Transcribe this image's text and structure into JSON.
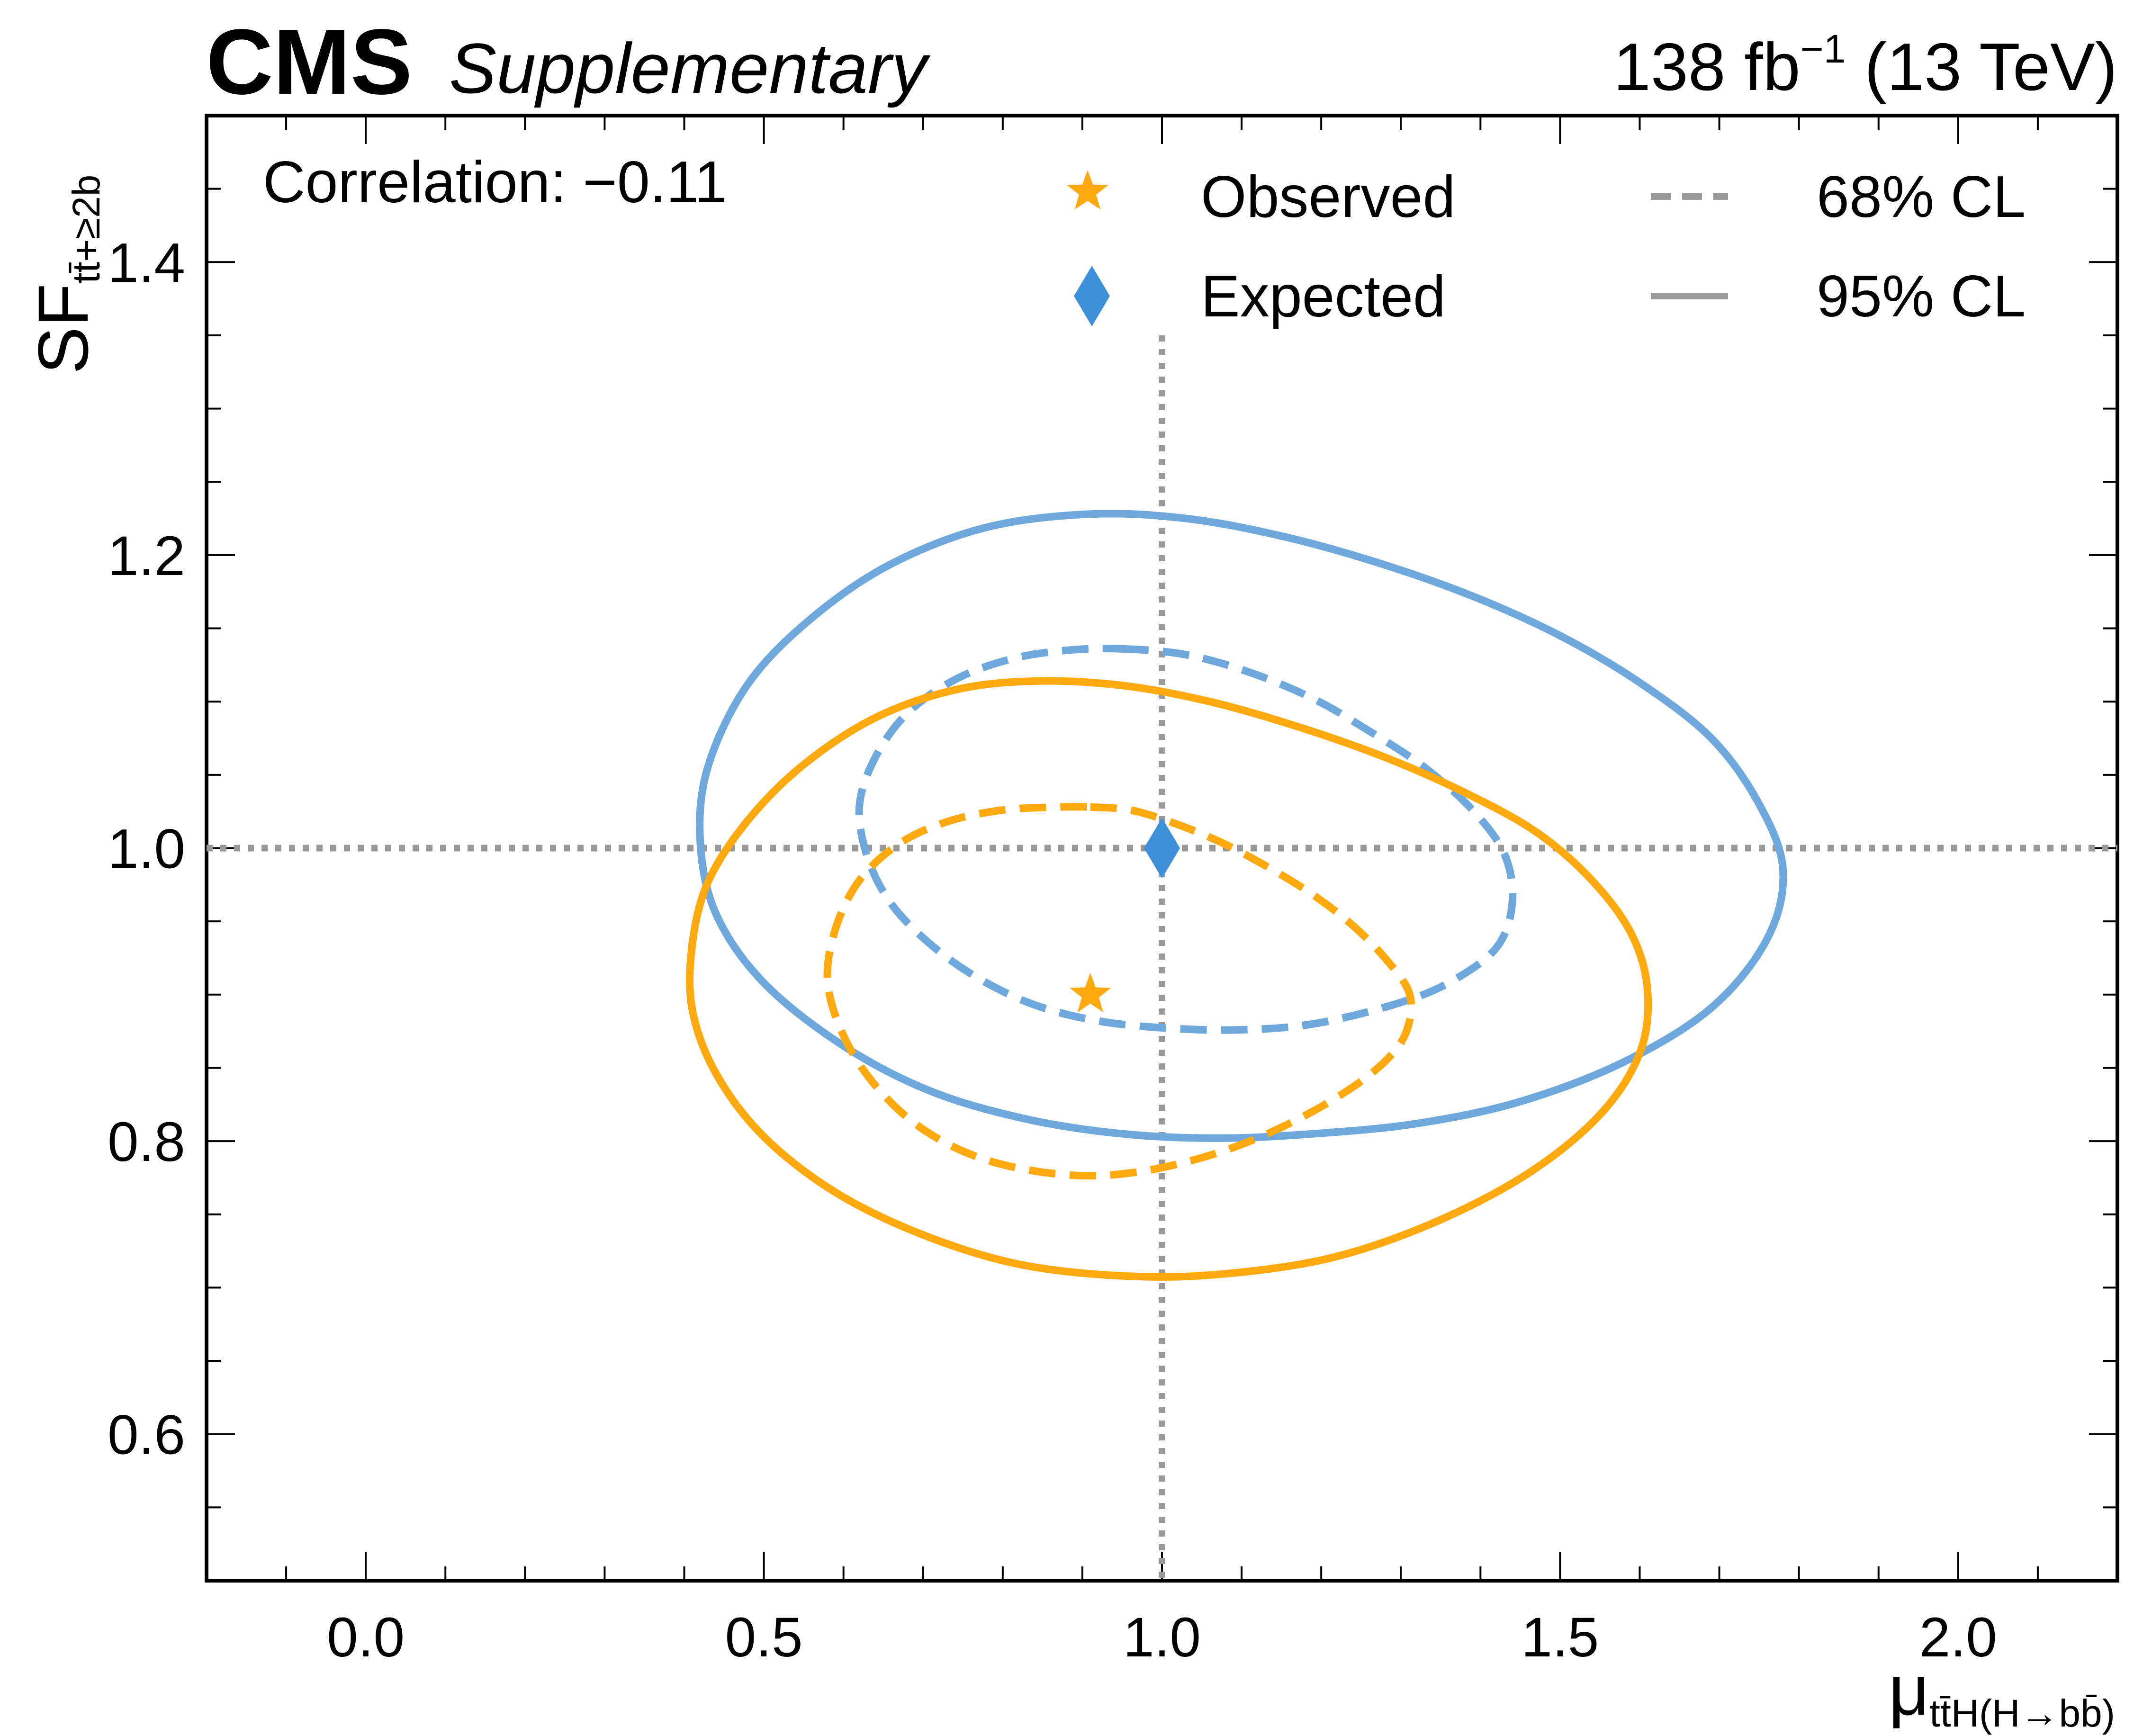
{
  "header": {
    "experiment": "CMS",
    "status": "Supplementary",
    "lumi_value": "138 fb",
    "lumi_exponent": "−1",
    "energy": " (13 TeV)"
  },
  "annotation": "Correlation: −0.11",
  "axes": {
    "x_title_main": "μ",
    "x_title_sub": "tt̄H(H→bb̄)",
    "y_title_main": "SF",
    "y_title_sub": "tt̄+≥2b"
  },
  "legend": {
    "observed": "Observed",
    "expected": "Expected",
    "cl68": "68% CL",
    "cl95": "95% CL"
  },
  "colors": {
    "observed": "#ffa90e",
    "expected": "#3f90da",
    "expected_contour": "#6fa8dc",
    "reference_line": "#999999",
    "legend_line": "#999999"
  },
  "chart_data": {
    "type": "contour",
    "xlim": [
      -0.2,
      2.2
    ],
    "ylim": [
      0.5,
      1.5
    ],
    "xticks": [
      0.0,
      0.5,
      1.0,
      1.5,
      2.0
    ],
    "xtick_labels": [
      "0.0",
      "0.5",
      "1.0",
      "1.5",
      "2.0"
    ],
    "yticks": [
      0.6,
      0.8,
      1.0,
      1.2,
      1.4
    ],
    "ytick_labels": [
      "0.6",
      "0.8",
      "1.0",
      "1.2",
      "1.4"
    ],
    "grid": false,
    "legend_placement": "top",
    "reference_lines": {
      "x": 1.0,
      "y": 1.0
    },
    "points": [
      {
        "series": "Observed",
        "marker": "star",
        "x": 0.91,
        "y": 0.9
      },
      {
        "series": "Expected",
        "marker": "diamond",
        "x": 1.0,
        "y": 1.0
      }
    ],
    "contours": [
      {
        "series": "Observed",
        "cl": "68% CL",
        "style": "dashed",
        "x": [
          0.91,
          0.96,
          1.01,
          1.07,
          1.13,
          1.19,
          1.24,
          1.28,
          1.31,
          1.31,
          1.29,
          1.24,
          1.16,
          1.07,
          0.97,
          0.88,
          0.78,
          0.7,
          0.64,
          0.6,
          0.58,
          0.59,
          0.62,
          0.67,
          0.73,
          0.8,
          0.87,
          0.91
        ],
        "y": [
          1.028,
          1.026,
          1.018,
          1.005,
          0.988,
          0.968,
          0.947,
          0.925,
          0.902,
          0.88,
          0.86,
          0.837,
          0.812,
          0.792,
          0.779,
          0.777,
          0.787,
          0.808,
          0.838,
          0.872,
          0.909,
          0.945,
          0.978,
          1.003,
          1.018,
          1.026,
          1.028,
          1.028
        ]
      },
      {
        "series": "Observed",
        "cl": "95% CL",
        "style": "solid",
        "x": [
          0.84,
          0.95,
          1.06,
          1.17,
          1.28,
          1.38,
          1.47,
          1.54,
          1.59,
          1.61,
          1.6,
          1.55,
          1.46,
          1.34,
          1.21,
          1.07,
          0.95,
          0.82,
          0.7,
          0.59,
          0.5,
          0.44,
          0.41,
          0.41,
          0.43,
          0.48,
          0.55,
          0.64,
          0.74,
          0.84
        ],
        "y": [
          1.114,
          1.111,
          1.1,
          1.083,
          1.062,
          1.038,
          1.011,
          0.978,
          0.941,
          0.902,
          0.86,
          0.818,
          0.778,
          0.744,
          0.72,
          0.709,
          0.708,
          0.716,
          0.736,
          0.765,
          0.803,
          0.846,
          0.89,
          0.934,
          0.977,
          1.019,
          1.057,
          1.089,
          1.108,
          1.114
        ]
      },
      {
        "series": "Expected",
        "cl": "68% CL",
        "style": "dashed",
        "x": [
          0.95,
          1.03,
          1.11,
          1.19,
          1.26,
          1.33,
          1.39,
          1.43,
          1.44,
          1.42,
          1.36,
          1.29,
          1.19,
          1.1,
          1.01,
          0.92,
          0.84,
          0.77,
          0.71,
          0.66,
          0.63,
          0.62,
          0.64,
          0.68,
          0.74,
          0.81,
          0.88,
          0.95
        ],
        "y": [
          1.136,
          1.132,
          1.12,
          1.102,
          1.08,
          1.055,
          1.026,
          0.996,
          0.963,
          0.932,
          0.908,
          0.893,
          0.88,
          0.876,
          0.877,
          0.882,
          0.893,
          0.911,
          0.934,
          0.962,
          0.994,
          1.029,
          1.062,
          1.092,
          1.115,
          1.129,
          1.135,
          1.136
        ]
      },
      {
        "series": "Expected",
        "cl": "95% CL",
        "style": "solid",
        "x": [
          0.91,
          1.03,
          1.15,
          1.27,
          1.39,
          1.5,
          1.6,
          1.69,
          1.75,
          1.78,
          1.76,
          1.69,
          1.58,
          1.45,
          1.32,
          1.19,
          1.07,
          0.95,
          0.83,
          0.71,
          0.6,
          0.5,
          0.44,
          0.42,
          0.43,
          0.48,
          0.56,
          0.66,
          0.78,
          0.91
        ],
        "y": [
          1.228,
          1.225,
          1.213,
          1.195,
          1.172,
          1.145,
          1.113,
          1.075,
          1.03,
          0.985,
          0.938,
          0.891,
          0.854,
          0.827,
          0.812,
          0.805,
          0.802,
          0.805,
          0.815,
          0.834,
          0.865,
          0.908,
          0.955,
          1.005,
          1.056,
          1.112,
          1.157,
          1.194,
          1.219,
          1.228
        ]
      }
    ]
  }
}
